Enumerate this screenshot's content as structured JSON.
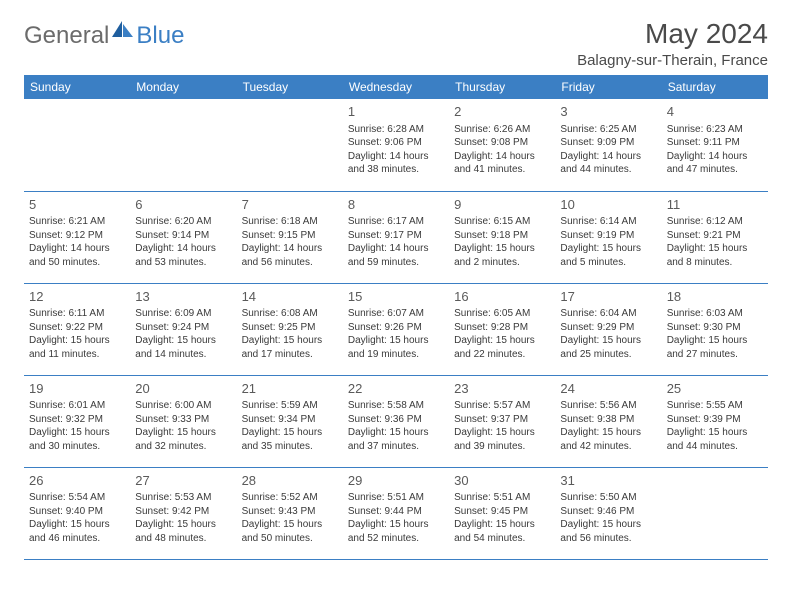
{
  "brand": {
    "part1": "General",
    "part2": "Blue"
  },
  "title": "May 2024",
  "location": "Balagny-sur-Therain, France",
  "colors": {
    "header_bg": "#3b7fc4",
    "header_text": "#ffffff",
    "day_text": "#3a3a3a",
    "brand_gray": "#6b6b6b",
    "brand_blue": "#3b7fc4",
    "rule": "#3b7fc4"
  },
  "weekdays": [
    "Sunday",
    "Monday",
    "Tuesday",
    "Wednesday",
    "Thursday",
    "Friday",
    "Saturday"
  ],
  "weeks": [
    [
      null,
      null,
      null,
      {
        "d": "1",
        "sr": "6:28 AM",
        "ss": "9:06 PM",
        "dl": "14 hours and 38 minutes."
      },
      {
        "d": "2",
        "sr": "6:26 AM",
        "ss": "9:08 PM",
        "dl": "14 hours and 41 minutes."
      },
      {
        "d": "3",
        "sr": "6:25 AM",
        "ss": "9:09 PM",
        "dl": "14 hours and 44 minutes."
      },
      {
        "d": "4",
        "sr": "6:23 AM",
        "ss": "9:11 PM",
        "dl": "14 hours and 47 minutes."
      }
    ],
    [
      {
        "d": "5",
        "sr": "6:21 AM",
        "ss": "9:12 PM",
        "dl": "14 hours and 50 minutes."
      },
      {
        "d": "6",
        "sr": "6:20 AM",
        "ss": "9:14 PM",
        "dl": "14 hours and 53 minutes."
      },
      {
        "d": "7",
        "sr": "6:18 AM",
        "ss": "9:15 PM",
        "dl": "14 hours and 56 minutes."
      },
      {
        "d": "8",
        "sr": "6:17 AM",
        "ss": "9:17 PM",
        "dl": "14 hours and 59 minutes."
      },
      {
        "d": "9",
        "sr": "6:15 AM",
        "ss": "9:18 PM",
        "dl": "15 hours and 2 minutes."
      },
      {
        "d": "10",
        "sr": "6:14 AM",
        "ss": "9:19 PM",
        "dl": "15 hours and 5 minutes."
      },
      {
        "d": "11",
        "sr": "6:12 AM",
        "ss": "9:21 PM",
        "dl": "15 hours and 8 minutes."
      }
    ],
    [
      {
        "d": "12",
        "sr": "6:11 AM",
        "ss": "9:22 PM",
        "dl": "15 hours and 11 minutes."
      },
      {
        "d": "13",
        "sr": "6:09 AM",
        "ss": "9:24 PM",
        "dl": "15 hours and 14 minutes."
      },
      {
        "d": "14",
        "sr": "6:08 AM",
        "ss": "9:25 PM",
        "dl": "15 hours and 17 minutes."
      },
      {
        "d": "15",
        "sr": "6:07 AM",
        "ss": "9:26 PM",
        "dl": "15 hours and 19 minutes."
      },
      {
        "d": "16",
        "sr": "6:05 AM",
        "ss": "9:28 PM",
        "dl": "15 hours and 22 minutes."
      },
      {
        "d": "17",
        "sr": "6:04 AM",
        "ss": "9:29 PM",
        "dl": "15 hours and 25 minutes."
      },
      {
        "d": "18",
        "sr": "6:03 AM",
        "ss": "9:30 PM",
        "dl": "15 hours and 27 minutes."
      }
    ],
    [
      {
        "d": "19",
        "sr": "6:01 AM",
        "ss": "9:32 PM",
        "dl": "15 hours and 30 minutes."
      },
      {
        "d": "20",
        "sr": "6:00 AM",
        "ss": "9:33 PM",
        "dl": "15 hours and 32 minutes."
      },
      {
        "d": "21",
        "sr": "5:59 AM",
        "ss": "9:34 PM",
        "dl": "15 hours and 35 minutes."
      },
      {
        "d": "22",
        "sr": "5:58 AM",
        "ss": "9:36 PM",
        "dl": "15 hours and 37 minutes."
      },
      {
        "d": "23",
        "sr": "5:57 AM",
        "ss": "9:37 PM",
        "dl": "15 hours and 39 minutes."
      },
      {
        "d": "24",
        "sr": "5:56 AM",
        "ss": "9:38 PM",
        "dl": "15 hours and 42 minutes."
      },
      {
        "d": "25",
        "sr": "5:55 AM",
        "ss": "9:39 PM",
        "dl": "15 hours and 44 minutes."
      }
    ],
    [
      {
        "d": "26",
        "sr": "5:54 AM",
        "ss": "9:40 PM",
        "dl": "15 hours and 46 minutes."
      },
      {
        "d": "27",
        "sr": "5:53 AM",
        "ss": "9:42 PM",
        "dl": "15 hours and 48 minutes."
      },
      {
        "d": "28",
        "sr": "5:52 AM",
        "ss": "9:43 PM",
        "dl": "15 hours and 50 minutes."
      },
      {
        "d": "29",
        "sr": "5:51 AM",
        "ss": "9:44 PM",
        "dl": "15 hours and 52 minutes."
      },
      {
        "d": "30",
        "sr": "5:51 AM",
        "ss": "9:45 PM",
        "dl": "15 hours and 54 minutes."
      },
      {
        "d": "31",
        "sr": "5:50 AM",
        "ss": "9:46 PM",
        "dl": "15 hours and 56 minutes."
      },
      null
    ]
  ],
  "labels": {
    "sunrise": "Sunrise:",
    "sunset": "Sunset:",
    "daylight": "Daylight:"
  }
}
